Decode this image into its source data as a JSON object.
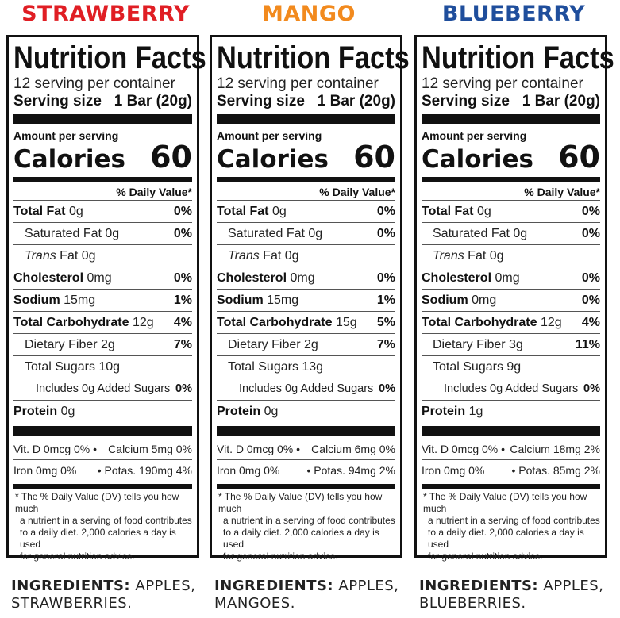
{
  "labels": [
    {
      "name": "STRAWBERRY",
      "color": "#e01e24",
      "nf_title": "Nutrition Facts",
      "servings": "12",
      "servings_text": "serving per container",
      "serving_size_label": "Serving size",
      "serving_size_value": "1 Bar (20g)",
      "amount_per_serving": "Amount per serving",
      "calories_label": "Calories",
      "calories_value": "60",
      "dv_header": "% Daily Value*",
      "rows": [
        {
          "bold": "Total Fat",
          "text": "0g",
          "pct": "0%"
        },
        {
          "bold": "",
          "text": "Saturated Fat 0g",
          "pct": "0%"
        },
        {
          "bold": "",
          "italic": "Trans",
          "text": "Fat 0g",
          "pct": ""
        },
        {
          "bold": "Cholesterol",
          "text": "0mg",
          "pct": "0%"
        },
        {
          "bold": "Sodium",
          "text": "15mg",
          "pct": "1%"
        },
        {
          "bold": "Total Carbohydrate",
          "text": "12g",
          "pct": "4%"
        },
        {
          "bold": "",
          "text": "Dietary Fiber 2g",
          "pct": "7%"
        },
        {
          "bold": "",
          "text": "Total Sugars 10g",
          "pct": ""
        },
        {
          "bold": "",
          "text": "Includes 0g Added Sugars",
          "pct": "0%"
        },
        {
          "bold": "Protein",
          "text": "0g",
          "pct": ""
        }
      ],
      "vit1_left": "Vit. D 0mcg 0% •",
      "vit1_right": "Calcium 5mg 0%",
      "vit2_left": "Iron 0mg 0%",
      "vit2_right": "• Potas. 190mg 4%",
      "footnote_1": "* The % Daily Value (DV) tells you how much",
      "footnote_2": "a nutrient in a serving of food contributes",
      "footnote_3": "to a daily diet. 2,000 calories a day is used",
      "footnote_4": "for general nutrition advice.",
      "ingredients_label": "INGREDIENTS:",
      "ingredients_line1": "APPLES,",
      "ingredients_line2": "STRAWBERRIES."
    },
    {
      "name": "MANGO",
      "color": "#f28a1e",
      "nf_title": "Nutrition Facts",
      "servings": "12",
      "servings_text": "serving per container",
      "serving_size_label": "Serving size",
      "serving_size_value": "1 Bar (20g)",
      "amount_per_serving": "Amount per serving",
      "calories_label": "Calories",
      "calories_value": "60",
      "dv_header": "% Daily Value*",
      "rows": [
        {
          "bold": "Total Fat",
          "text": "0g",
          "pct": "0%"
        },
        {
          "bold": "",
          "text": "Saturated Fat 0g",
          "pct": "0%"
        },
        {
          "bold": "",
          "italic": "Trans",
          "text": "Fat 0g",
          "pct": ""
        },
        {
          "bold": "Cholesterol",
          "text": "0mg",
          "pct": "0%"
        },
        {
          "bold": "Sodium",
          "text": "15mg",
          "pct": "1%"
        },
        {
          "bold": "Total Carbohydrate",
          "text": "15g",
          "pct": "5%"
        },
        {
          "bold": "",
          "text": "Dietary Fiber 2g",
          "pct": "7%"
        },
        {
          "bold": "",
          "text": "Total Sugars 13g",
          "pct": ""
        },
        {
          "bold": "",
          "text": "Includes 0g Added Sugars",
          "pct": "0%"
        },
        {
          "bold": "Protein",
          "text": "0g",
          "pct": ""
        }
      ],
      "vit1_left": "Vit. D 0mcg 0% •",
      "vit1_right": "Calcium 6mg 0%",
      "vit2_left": "Iron 0mg 0%",
      "vit2_right": "• Potas. 94mg 2%",
      "footnote_1": "* The % Daily Value (DV) tells you how much",
      "footnote_2": "a nutrient in a serving of food contributes",
      "footnote_3": "to a daily diet. 2,000 calories a day is used",
      "footnote_4": "for general nutrition advice.",
      "ingredients_label": "INGREDIENTS:",
      "ingredients_line1": "APPLES,",
      "ingredients_line2": "MANGOES."
    },
    {
      "name": "BLUEBERRY",
      "color": "#1f4e9c",
      "nf_title": "Nutrition Facts",
      "servings": "12",
      "servings_text": "serving per container",
      "serving_size_label": "Serving size",
      "serving_size_value": "1 Bar (20g)",
      "amount_per_serving": "Amount per serving",
      "calories_label": "Calories",
      "calories_value": "60",
      "dv_header": "% Daily Value*",
      "rows": [
        {
          "bold": "Total Fat",
          "text": "0g",
          "pct": "0%"
        },
        {
          "bold": "",
          "text": "Saturated Fat 0g",
          "pct": "0%"
        },
        {
          "bold": "",
          "italic": "Trans",
          "text": "Fat 0g",
          "pct": ""
        },
        {
          "bold": "Cholesterol",
          "text": "0mg",
          "pct": "0%"
        },
        {
          "bold": "Sodium",
          "text": "0mg",
          "pct": "0%"
        },
        {
          "bold": "Total Carbohydrate",
          "text": "12g",
          "pct": "4%"
        },
        {
          "bold": "",
          "text": "Dietary Fiber 3g",
          "pct": "11%"
        },
        {
          "bold": "",
          "text": "Total Sugars 9g",
          "pct": ""
        },
        {
          "bold": "",
          "text": "Includes 0g Added Sugars",
          "pct": "0%"
        },
        {
          "bold": "Protein",
          "text": "1g",
          "pct": ""
        }
      ],
      "vit1_left": "Vit. D 0mcg 0% •",
      "vit1_right": "Calcium 18mg 2%",
      "vit2_left": "Iron 0mg 0%",
      "vit2_right": "• Potas. 85mg 2%",
      "footnote_1": "* The % Daily Value (DV) tells you how much",
      "footnote_2": "a nutrient in a serving of food contributes",
      "footnote_3": "to a daily diet. 2,000 calories a day is used",
      "footnote_4": "for general nutrition advice.",
      "ingredients_label": "INGREDIENTS:",
      "ingredients_line1": "APPLES,",
      "ingredients_line2": "BLUEBERRIES."
    }
  ]
}
